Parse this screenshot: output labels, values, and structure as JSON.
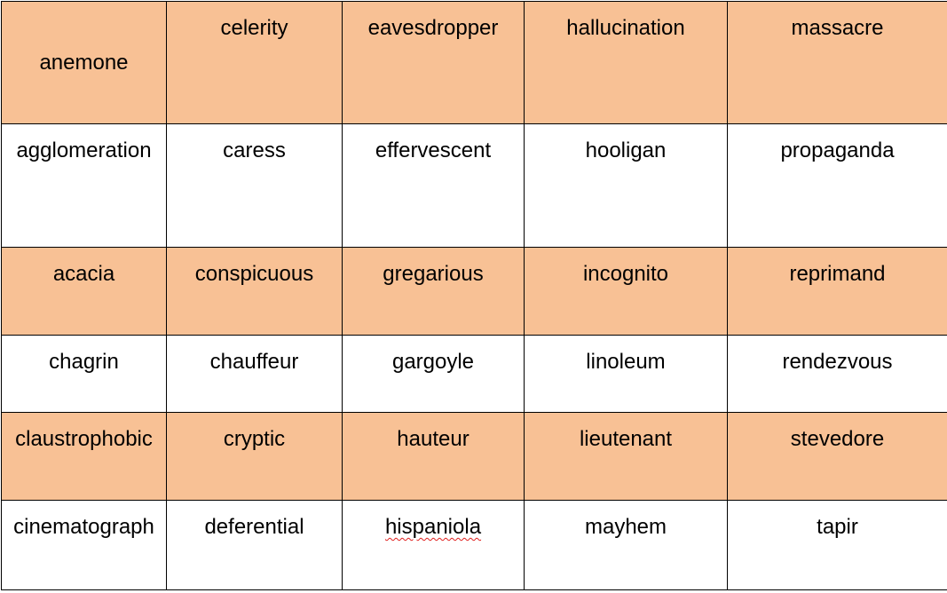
{
  "table": {
    "rows": [
      {
        "cells": [
          "anemone",
          "celerity",
          "eavesdropper",
          "hallucination",
          "massacre"
        ]
      },
      {
        "cells": [
          "agglomeration",
          "caress",
          "effervescent",
          "hooligan",
          "propaganda"
        ]
      },
      {
        "cells": [
          "acacia",
          "conspicuous",
          "gregarious",
          "incognito",
          "reprimand"
        ]
      },
      {
        "cells": [
          "chagrin",
          "chauffeur",
          "gargoyle",
          "linoleum",
          "rendezvous"
        ]
      },
      {
        "cells": [
          "claustrophobic",
          "cryptic",
          "hauteur",
          "lieutenant",
          "stevedore"
        ]
      },
      {
        "cells": [
          "cinematograph",
          "deferential",
          "hispaniola",
          "mayhem",
          "tapir"
        ]
      }
    ]
  },
  "colors": {
    "shaded_row": "#f8c195",
    "plain_row": "#ffffff",
    "border": "#000000",
    "spellcheck_underline": "#e0201e"
  }
}
